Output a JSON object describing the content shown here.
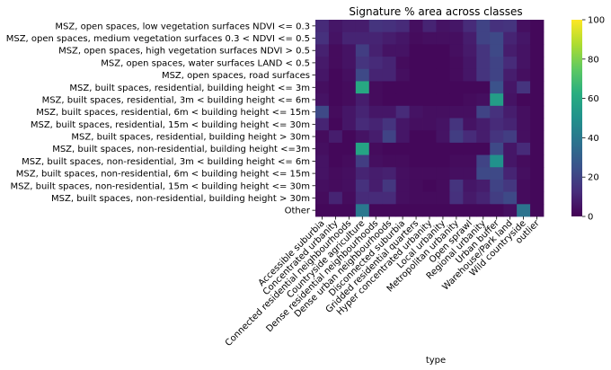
{
  "chart_data": {
    "type": "heatmap",
    "title": "Signature % area across classes",
    "xlabel": "type",
    "ylabel": "",
    "colormap": "viridis",
    "colorbar": {
      "min": 0,
      "max": 100,
      "ticks": [
        0,
        20,
        40,
        60,
        80,
        100
      ]
    },
    "rows": [
      "MSZ, open spaces, low vegetation surfaces NDVI <= 0.3",
      "MSZ, open spaces, medium vegetation surfaces 0.3 < NDVI <= 0.5",
      "MSZ, open spaces, high vegetation surfaces NDVI > 0.5",
      "MSZ, open spaces, water surfaces LAND < 0.5",
      "MSZ, open spaces, road surfaces",
      "MSZ, built spaces, residential, building height <= 3m",
      "MSZ, built spaces, residential, 3m < building height <= 6m",
      "MSZ, built spaces, residential, 6m < building height <= 15m",
      "MSZ, built spaces, residential, 15m < building height <= 30m",
      "MSZ, built spaces, residential, building height > 30m",
      "MSZ, built spaces, non-residential, building height <=3m",
      "MSZ, built spaces, non-residential, 3m < building height <= 6m",
      "MSZ, built spaces, non-residential, 6m < building height <= 15m",
      "MSZ, built spaces, non-residential, 15m < building height <= 30m",
      "MSZ, built spaces, non-residential, building height > 30m",
      "Other"
    ],
    "columns": [
      "Accessible suburbia",
      "Concentrated urbanity",
      "Connected residential neighbourhoods",
      "Countryside agriculture",
      "Dense residential neighbourhoods",
      "Dense urban neighbourhoods",
      "Disconnected suburbia",
      "Gridded residential quarters",
      "Hyper concentrated urbanity",
      "Local urbanity",
      "Metropolitan urbanity",
      "Open sprawl",
      "Regional urbanity",
      "Urban buffer",
      "Warehouse/Park land",
      "Wild countryside",
      "outlier"
    ],
    "values": [
      [
        12,
        6,
        8,
        8,
        15,
        14,
        12,
        4,
        10,
        5,
        6,
        12,
        20,
        14,
        15,
        4,
        2
      ],
      [
        14,
        5,
        10,
        10,
        10,
        8,
        6,
        3,
        4,
        4,
        4,
        8,
        20,
        22,
        10,
        6,
        2
      ],
      [
        9,
        3,
        5,
        18,
        9,
        5,
        5,
        2,
        2,
        2,
        4,
        7,
        15,
        22,
        8,
        5,
        2
      ],
      [
        7,
        3,
        5,
        15,
        12,
        10,
        3,
        2,
        2,
        2,
        3,
        6,
        15,
        20,
        12,
        5,
        2
      ],
      [
        6,
        2,
        4,
        22,
        10,
        10,
        4,
        2,
        2,
        2,
        3,
        6,
        15,
        20,
        8,
        4,
        2
      ],
      [
        4,
        2,
        3,
        60,
        3,
        2,
        2,
        2,
        2,
        2,
        2,
        2,
        2,
        25,
        6,
        15,
        2
      ],
      [
        5,
        2,
        3,
        8,
        3,
        2,
        2,
        2,
        2,
        2,
        2,
        3,
        4,
        55,
        5,
        2,
        2
      ],
      [
        22,
        3,
        6,
        10,
        6,
        6,
        12,
        5,
        4,
        4,
        4,
        4,
        20,
        14,
        8,
        4,
        2
      ],
      [
        10,
        2,
        6,
        12,
        10,
        15,
        6,
        4,
        4,
        5,
        15,
        5,
        8,
        12,
        10,
        4,
        2
      ],
      [
        3,
        8,
        2,
        5,
        8,
        20,
        6,
        2,
        2,
        5,
        18,
        12,
        8,
        15,
        18,
        4,
        2
      ],
      [
        4,
        2,
        2,
        58,
        3,
        2,
        2,
        2,
        2,
        2,
        2,
        2,
        2,
        22,
        6,
        12,
        2
      ],
      [
        5,
        2,
        3,
        18,
        4,
        3,
        3,
        2,
        2,
        2,
        3,
        3,
        20,
        50,
        6,
        3,
        2
      ],
      [
        5,
        3,
        4,
        10,
        8,
        9,
        4,
        3,
        3,
        3,
        4,
        4,
        22,
        22,
        10,
        4,
        2
      ],
      [
        4,
        3,
        4,
        14,
        8,
        16,
        4,
        3,
        2,
        3,
        15,
        6,
        8,
        20,
        16,
        3,
        2
      ],
      [
        3,
        10,
        3,
        12,
        12,
        12,
        4,
        3,
        3,
        3,
        14,
        7,
        10,
        18,
        22,
        3,
        2
      ],
      [
        2,
        2,
        2,
        40,
        2,
        2,
        2,
        2,
        2,
        2,
        2,
        2,
        2,
        2,
        4,
        38,
        2
      ]
    ],
    "grid": false,
    "legend": "none"
  }
}
